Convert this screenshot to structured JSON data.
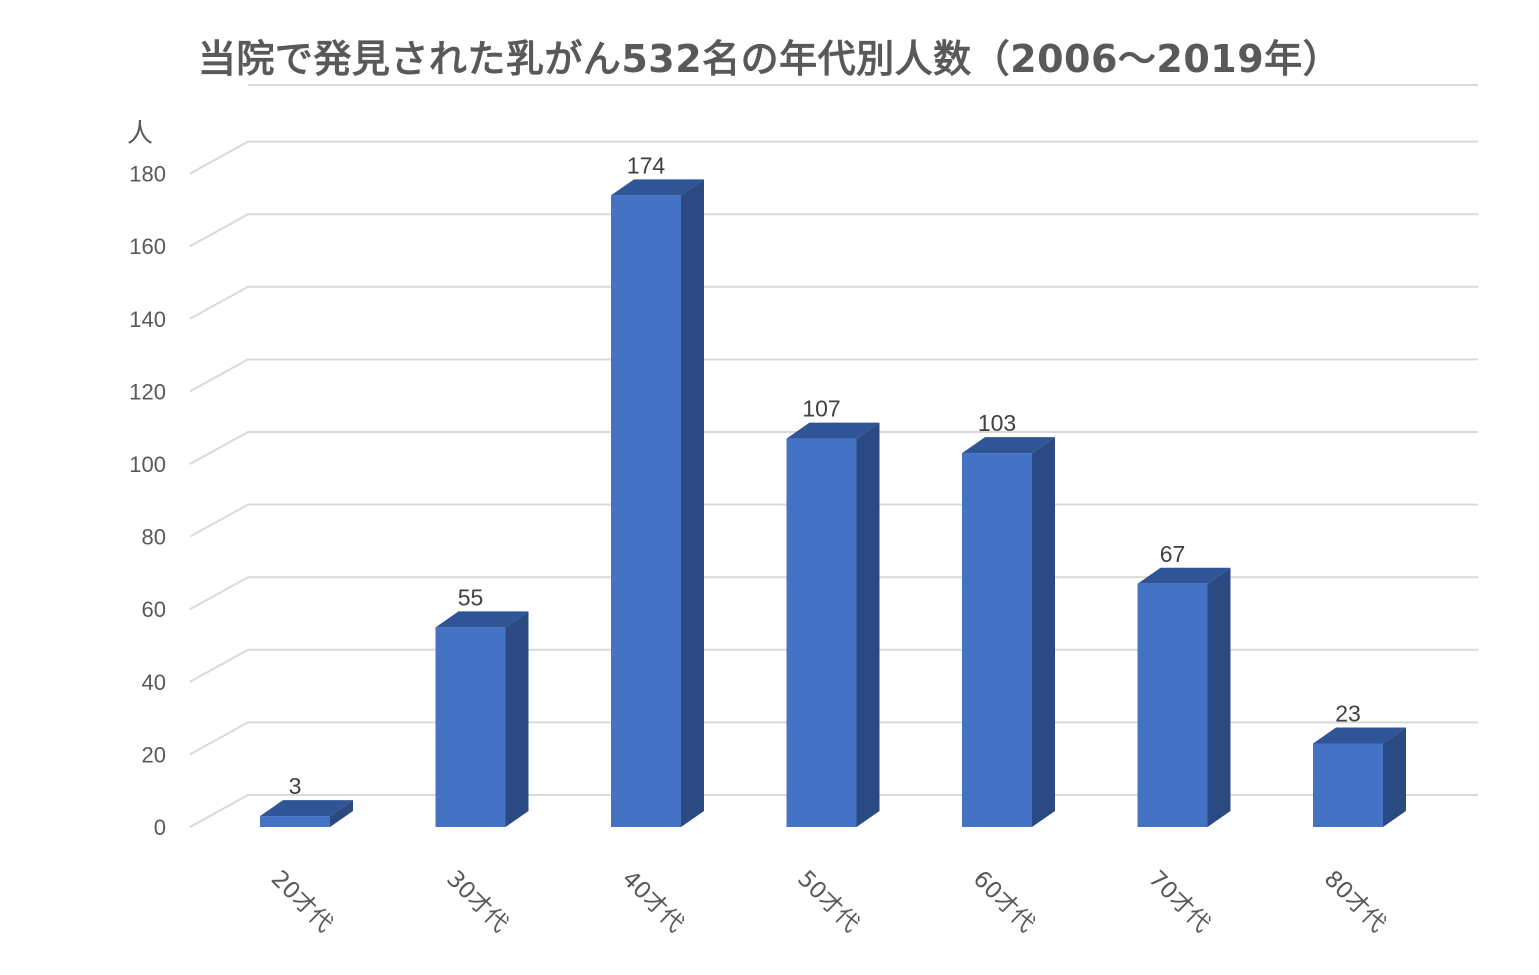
{
  "chart_data": {
    "type": "bar",
    "title": "当院で発見された乳がん532名の年代別人数（2006～2019年）",
    "ylabel": "人",
    "categories": [
      "20才代",
      "30才代",
      "40才代",
      "50才代",
      "60才代",
      "70才代",
      "80才代"
    ],
    "series": [
      {
        "values": [
          3,
          55,
          174,
          107,
          103,
          67,
          23
        ]
      }
    ],
    "ylim": [
      0,
      180
    ],
    "yticks": [
      0,
      20,
      40,
      60,
      80,
      100,
      120,
      140,
      160,
      180
    ],
    "grid": true,
    "style": "3d-column",
    "colors": {
      "front": "#4472C4",
      "side": "#2C4A82",
      "top": "#2F5597"
    }
  }
}
